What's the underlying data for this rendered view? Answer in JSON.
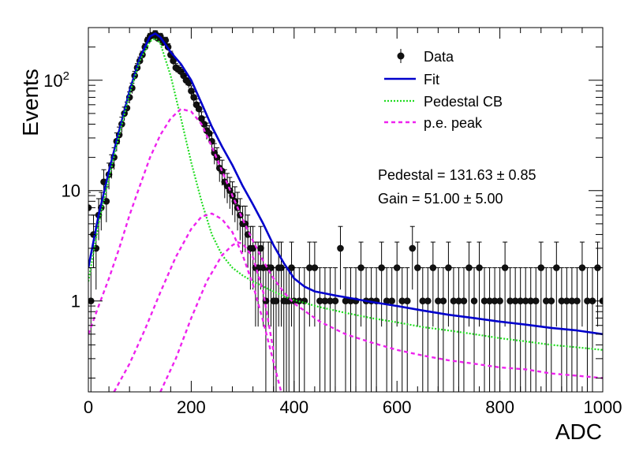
{
  "chart_data": {
    "type": "scatter",
    "xlabel": "ADC",
    "ylabel": "Events",
    "xlim": [
      0,
      1000
    ],
    "ylim": [
      0.15,
      300
    ],
    "y_scale": "log",
    "x_ticks": [
      "0",
      "200",
      "400",
      "600",
      "800",
      "1000"
    ],
    "y_ticks": [
      {
        "value": 1,
        "label": "1",
        "sup": ""
      },
      {
        "value": 10,
        "label": "10",
        "sup": ""
      },
      {
        "value": 100,
        "label": "10",
        "sup": "2"
      }
    ],
    "legend": {
      "position": "top-right",
      "entries": [
        {
          "key": "data",
          "label": "Data",
          "style": "marker",
          "color": "#000000"
        },
        {
          "key": "fit",
          "label": "Fit",
          "style": "solid",
          "color": "#0000cc"
        },
        {
          "key": "ped",
          "label": "Pedestal CB",
          "style": "dotted",
          "color": "#22dd22"
        },
        {
          "key": "pe",
          "label": "p.e. peak",
          "style": "dashed",
          "color": "#ee22ee"
        }
      ]
    },
    "annotations": [
      {
        "text": "Pedestal = 131.63 ± 0.85"
      },
      {
        "text": "Gain = 51.00 ± 5.00"
      }
    ],
    "series": [
      {
        "name": "Data",
        "style": "points",
        "color": "#000000",
        "x": [
          0,
          5,
          10,
          15,
          20,
          25,
          30,
          35,
          40,
          45,
          50,
          55,
          60,
          65,
          70,
          75,
          80,
          85,
          90,
          95,
          100,
          105,
          110,
          115,
          120,
          125,
          130,
          135,
          140,
          145,
          150,
          155,
          160,
          165,
          170,
          175,
          180,
          185,
          190,
          195,
          200,
          205,
          210,
          215,
          220,
          225,
          230,
          235,
          240,
          245,
          250,
          255,
          260,
          265,
          270,
          275,
          280,
          285,
          290,
          295,
          300,
          305,
          310,
          315,
          320,
          325,
          330,
          335,
          340,
          345,
          350,
          355,
          360,
          365,
          370,
          375,
          380,
          385,
          390,
          395,
          400,
          410,
          420,
          430,
          440,
          450,
          460,
          470,
          480,
          490,
          500,
          510,
          520,
          530,
          540,
          550,
          560,
          570,
          580,
          590,
          600,
          610,
          620,
          630,
          640,
          650,
          660,
          670,
          680,
          690,
          700,
          710,
          720,
          730,
          740,
          750,
          760,
          770,
          780,
          790,
          800,
          810,
          820,
          830,
          840,
          850,
          860,
          870,
          880,
          890,
          900,
          910,
          920,
          930,
          940,
          950,
          960,
          970,
          980,
          990,
          1000
        ],
        "y": [
          7,
          1,
          4,
          3,
          6,
          7,
          12,
          8,
          14,
          17,
          20,
          28,
          32,
          40,
          50,
          56,
          70,
          85,
          110,
          130,
          150,
          170,
          200,
          230,
          250,
          255,
          265,
          240,
          250,
          220,
          230,
          200,
          170,
          150,
          130,
          125,
          120,
          110,
          100,
          95,
          80,
          70,
          60,
          55,
          45,
          40,
          35,
          33,
          28,
          22,
          20,
          16,
          15,
          12,
          11,
          10,
          9,
          8,
          7,
          6,
          5,
          5,
          4,
          3,
          3,
          2,
          2,
          3,
          2,
          1,
          2,
          2,
          1,
          1,
          2,
          2,
          1,
          1,
          1,
          2,
          1,
          1,
          1,
          2,
          2,
          1,
          1,
          1,
          1,
          3,
          1,
          1,
          1,
          2,
          1,
          1,
          1,
          2,
          1,
          1,
          2,
          1,
          1,
          3,
          2,
          1,
          1,
          2,
          1,
          1,
          2,
          1,
          1,
          1,
          2,
          1,
          2,
          1,
          1,
          1,
          1,
          2,
          1,
          1,
          1,
          1,
          1,
          1,
          2,
          1,
          1,
          2,
          1,
          1,
          1,
          1,
          2,
          1,
          1,
          2,
          1
        ]
      },
      {
        "name": "Fit",
        "style": "solid",
        "color": "#0000cc",
        "x": [
          0,
          20,
          40,
          60,
          80,
          100,
          120,
          130,
          140,
          160,
          180,
          200,
          220,
          240,
          260,
          280,
          300,
          320,
          340,
          360,
          380,
          400,
          420,
          440,
          460,
          480,
          500,
          550,
          600,
          650,
          700,
          750,
          800,
          850,
          900,
          950,
          1000
        ],
        "y": [
          2,
          6,
          15,
          35,
          80,
          160,
          250,
          265,
          245,
          180,
          140,
          100,
          62,
          38,
          25,
          17,
          11,
          7.5,
          5,
          3.2,
          2.2,
          1.6,
          1.35,
          1.22,
          1.17,
          1.12,
          1.08,
          0.98,
          0.9,
          0.82,
          0.75,
          0.7,
          0.65,
          0.61,
          0.57,
          0.54,
          0.5
        ]
      },
      {
        "name": "Pedestal CB",
        "style": "dotted",
        "color": "#22dd22",
        "x": [
          0,
          20,
          40,
          60,
          80,
          100,
          120,
          130,
          140,
          160,
          180,
          200,
          220,
          240,
          260,
          280,
          300,
          320,
          340,
          360,
          380,
          400,
          450,
          500,
          550,
          600,
          650,
          700,
          750,
          800,
          850,
          900,
          950,
          1000
        ],
        "y": [
          1.5,
          5,
          13,
          32,
          75,
          150,
          225,
          240,
          215,
          110,
          45,
          18,
          8,
          4,
          2.6,
          2,
          1.7,
          1.5,
          1.35,
          1.22,
          1.1,
          1.02,
          0.88,
          0.78,
          0.7,
          0.64,
          0.58,
          0.54,
          0.5,
          0.46,
          0.43,
          0.4,
          0.38,
          0.36
        ]
      },
      {
        "name": "p.e. peak 1",
        "style": "dashed",
        "color": "#ee22ee",
        "x": [
          0,
          20,
          40,
          60,
          80,
          100,
          120,
          140,
          160,
          180,
          200,
          220,
          240,
          260,
          280,
          300,
          320,
          340,
          360,
          380,
          400,
          450,
          500,
          550,
          600,
          650,
          700,
          750,
          800,
          850,
          900,
          950,
          1000
        ],
        "y": [
          0.5,
          0.9,
          1.6,
          3,
          6,
          11,
          20,
          32,
          45,
          55,
          52,
          40,
          25,
          15,
          9,
          5.5,
          3.5,
          2.3,
          1.6,
          1.2,
          0.95,
          0.65,
          0.5,
          0.42,
          0.36,
          0.32,
          0.29,
          0.27,
          0.25,
          0.24,
          0.22,
          0.21,
          0.2
        ]
      },
      {
        "name": "p.e. peak 2",
        "style": "dashed",
        "color": "#ee22ee",
        "x": [
          50,
          80,
          110,
          140,
          170,
          200,
          220,
          240,
          260,
          280,
          300,
          320,
          340,
          360,
          380
        ],
        "y": [
          0.15,
          0.27,
          0.55,
          1.2,
          2.5,
          4.5,
          5.8,
          6.2,
          5.5,
          4.2,
          2.6,
          1.4,
          0.65,
          0.28,
          0.12
        ]
      },
      {
        "name": "p.e. peak 3",
        "style": "dashed",
        "color": "#ee22ee",
        "x": [
          140,
          170,
          200,
          230,
          260,
          280,
          290,
          300,
          320,
          340,
          360
        ],
        "y": [
          0.15,
          0.3,
          0.7,
          1.5,
          2.6,
          3.2,
          3.4,
          3.3,
          2.5,
          1.2,
          0.35
        ]
      }
    ]
  }
}
